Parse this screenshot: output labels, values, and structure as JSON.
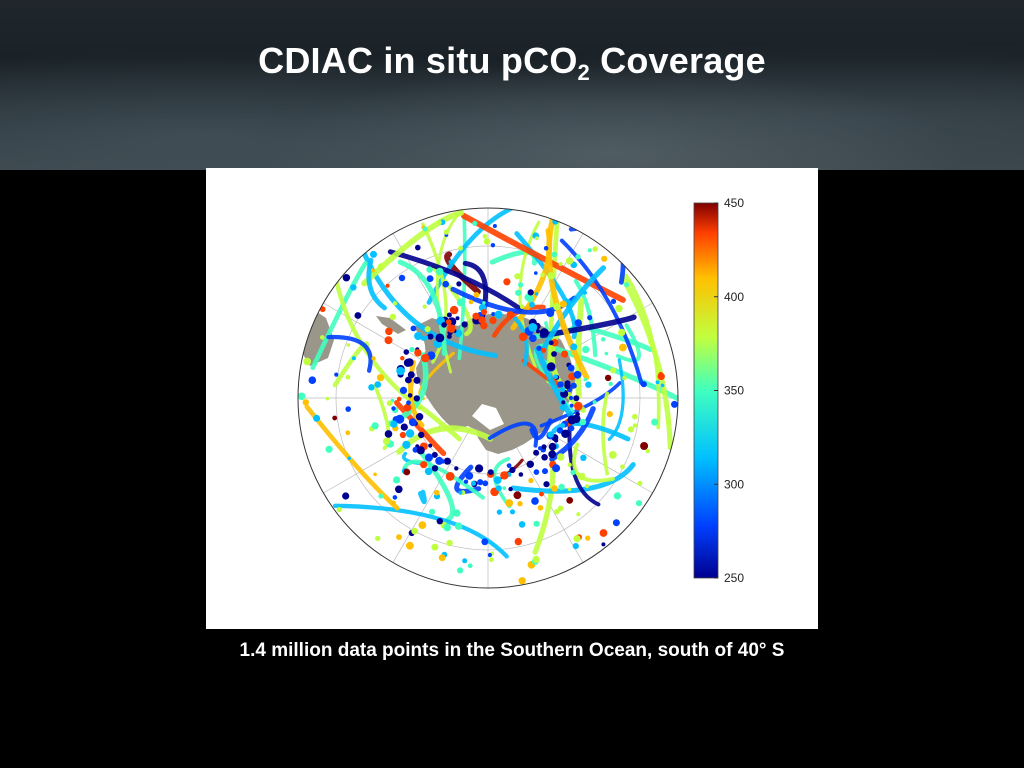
{
  "slide": {
    "title_main": "CDIAC in situ pCO",
    "title_sub": "2",
    "title_end": " Coverage",
    "caption": "1.4 million data points in the Southern Ocean, south of 40° S"
  },
  "map": {
    "projection": "south-polar-stereographic",
    "southern_limit_label": "40° S",
    "land_color": "#9a968a",
    "colorbar": {
      "min": 250,
      "max": 450,
      "ticks": [
        "450",
        "400",
        "350",
        "300",
        "250"
      ],
      "colors": [
        "#00008f",
        "#0040ff",
        "#00c0ff",
        "#40ffbf",
        "#c0ff40",
        "#ffc000",
        "#ff4000",
        "#800000"
      ]
    }
  }
}
